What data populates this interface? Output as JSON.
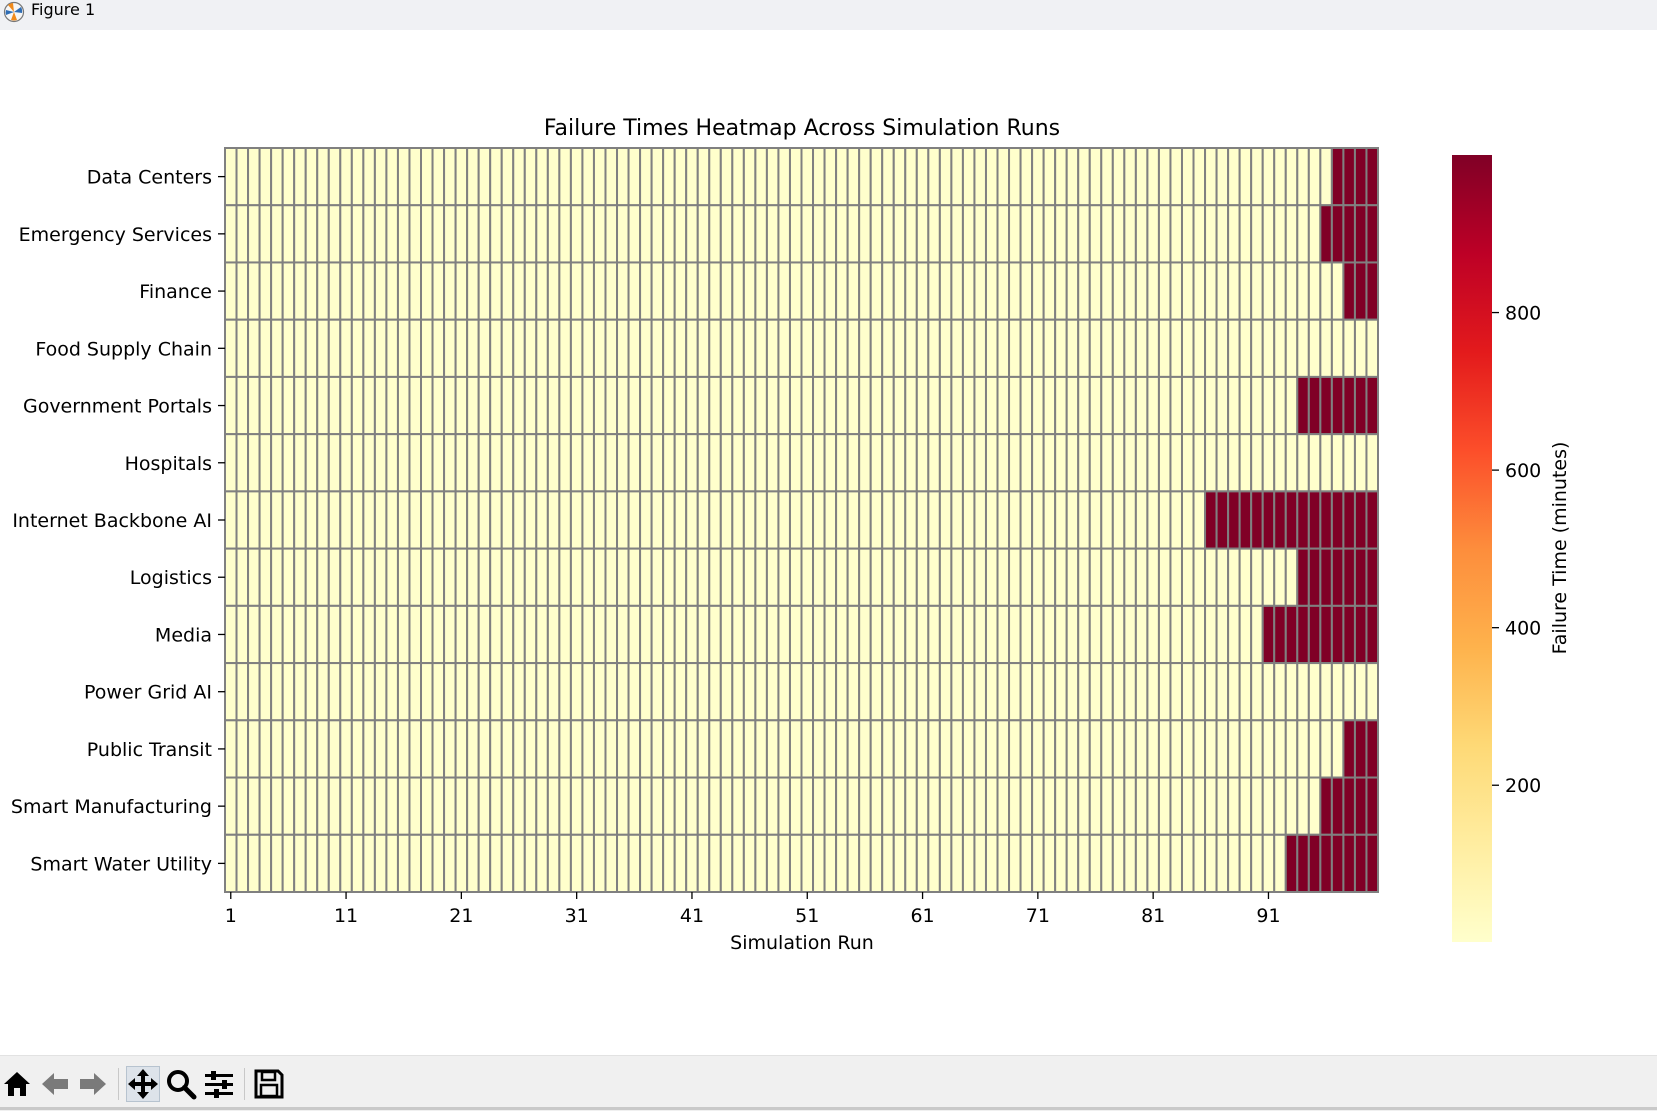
{
  "window": {
    "title": "Figure 1"
  },
  "toolbar": {
    "buttons": [
      {
        "name": "home-button",
        "icon": "home-icon"
      },
      {
        "name": "back-button",
        "icon": "arrow-left-icon"
      },
      {
        "name": "forward-button",
        "icon": "arrow-right-icon"
      },
      {
        "name": "pan-button",
        "icon": "move-icon",
        "active": true
      },
      {
        "name": "zoom-button",
        "icon": "magnifier-icon"
      },
      {
        "name": "configure-subplots-button",
        "icon": "sliders-icon"
      },
      {
        "name": "save-button",
        "icon": "floppy-disk-icon"
      }
    ]
  },
  "chart_data": {
    "type": "heatmap",
    "title": "Failure Times Heatmap Across Simulation Runs",
    "xlabel": "Simulation Run",
    "ylabel": "",
    "x_tick_labels": [
      "1",
      "11",
      "21",
      "31",
      "41",
      "51",
      "61",
      "71",
      "81",
      "91"
    ],
    "n_runs": 100,
    "rows": [
      {
        "label": "Data Centers",
        "low_value": 1,
        "high_value": 1000,
        "high_from_run": 97
      },
      {
        "label": "Emergency Services",
        "low_value": 1,
        "high_value": 1000,
        "high_from_run": 96
      },
      {
        "label": "Finance",
        "low_value": 1,
        "high_value": 1000,
        "high_from_run": 98
      },
      {
        "label": "Food Supply Chain",
        "low_value": 1,
        "high_value": 1000,
        "high_from_run": null
      },
      {
        "label": "Government Portals",
        "low_value": 1,
        "high_value": 1000,
        "high_from_run": 94
      },
      {
        "label": "Hospitals",
        "low_value": 1,
        "high_value": 1000,
        "high_from_run": null
      },
      {
        "label": "Internet Backbone AI",
        "low_value": 1,
        "high_value": 1000,
        "high_from_run": 86
      },
      {
        "label": "Logistics",
        "low_value": 1,
        "high_value": 1000,
        "high_from_run": 94
      },
      {
        "label": "Media",
        "low_value": 1,
        "high_value": 1000,
        "high_from_run": 91
      },
      {
        "label": "Power Grid AI",
        "low_value": 1,
        "high_value": 1000,
        "high_from_run": null
      },
      {
        "label": "Public Transit",
        "low_value": 1,
        "high_value": 1000,
        "high_from_run": 98
      },
      {
        "label": "Smart Manufacturing",
        "low_value": 1,
        "high_value": 1000,
        "high_from_run": 96
      },
      {
        "label": "Smart Water Utility",
        "low_value": 1,
        "high_value": 1000,
        "high_from_run": 93
      }
    ],
    "colorbar": {
      "label": "Failure Time (minutes)",
      "ticks": [
        200,
        400,
        600,
        800
      ],
      "range": [
        1,
        1000
      ],
      "colormap": "YlOrRd"
    },
    "colors": {
      "low": "#ffffcc",
      "high": "#800026",
      "grid_line": "#808080"
    }
  }
}
